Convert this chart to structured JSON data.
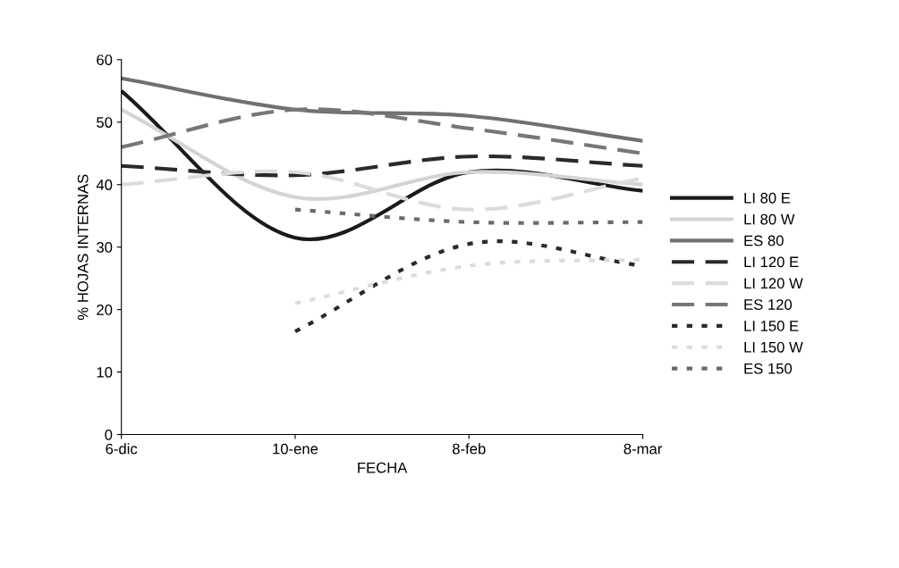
{
  "chart_data": {
    "type": "line",
    "xlabel": "FECHA",
    "ylabel": "% HOJAS INTERNAS",
    "categories": [
      "6-dic",
      "10-ene",
      "8-feb",
      "8-mar"
    ],
    "ylim": [
      0,
      60
    ],
    "yticks": [
      0,
      10,
      20,
      30,
      40,
      50,
      60
    ],
    "grid": false,
    "legend": "right",
    "marker": "none",
    "series": [
      {
        "name": "LI 80 E",
        "color": "#1a1a1a",
        "line_style": "solid",
        "values": [
          55,
          31.5,
          42,
          39
        ]
      },
      {
        "name": "LI 80 W",
        "color": "#d4d4d4",
        "line_style": "solid",
        "values": [
          52,
          38,
          42,
          40
        ]
      },
      {
        "name": "ES 80",
        "color": "#707070",
        "line_style": "solid",
        "values": [
          57,
          52,
          51,
          47
        ]
      },
      {
        "name": "LI 120 E",
        "color": "#2a2a2a",
        "line_style": "dashed",
        "values": [
          43,
          41.5,
          44.5,
          43
        ]
      },
      {
        "name": "LI 120 W",
        "color": "#dcdcdc",
        "line_style": "dashed",
        "values": [
          40,
          42,
          36,
          41
        ]
      },
      {
        "name": "ES 120",
        "color": "#777777",
        "line_style": "dashed",
        "values": [
          46,
          52,
          49,
          45
        ]
      },
      {
        "name": "LI 150 E",
        "color": "#2a2a2a",
        "line_style": "dotted",
        "values": [
          null,
          16.5,
          30.5,
          27
        ]
      },
      {
        "name": "LI 150 W",
        "color": "#dcdcdc",
        "line_style": "dotted",
        "values": [
          null,
          21,
          27,
          28
        ]
      },
      {
        "name": "ES 150",
        "color": "#6a6a6a",
        "line_style": "dotted",
        "values": [
          null,
          36,
          34,
          34
        ]
      }
    ]
  }
}
